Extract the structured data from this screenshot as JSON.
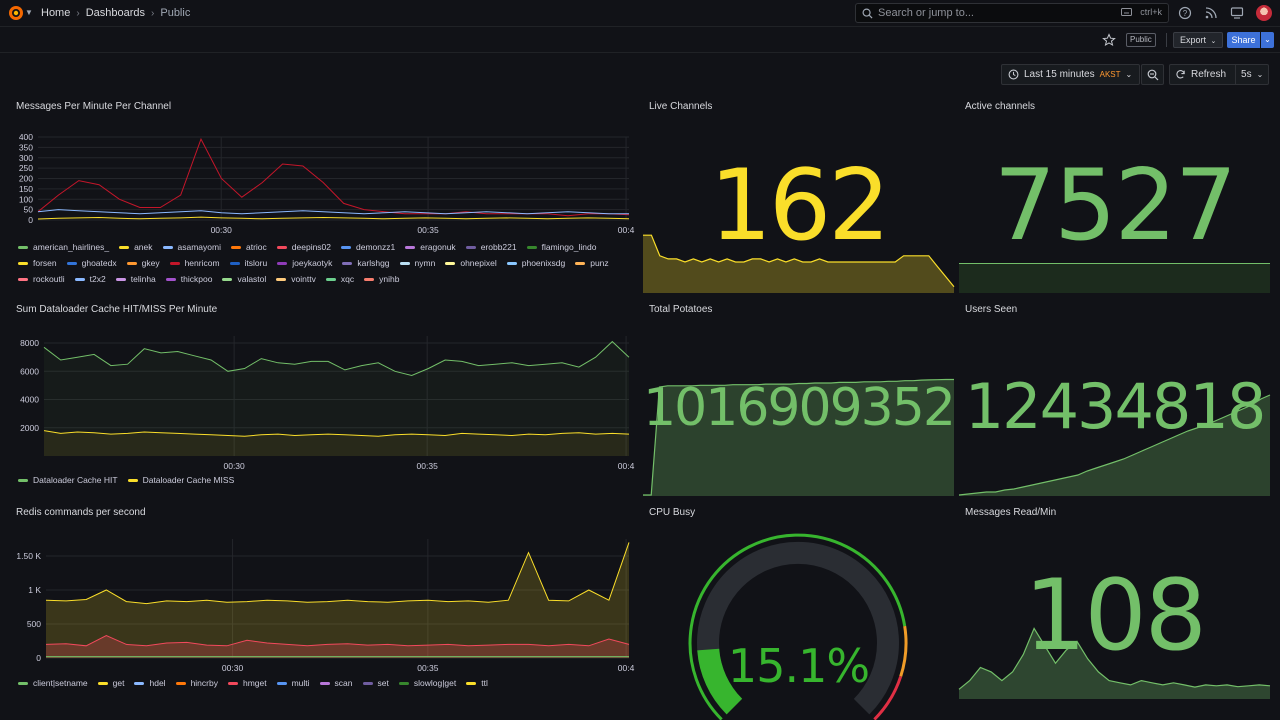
{
  "nav": {
    "breadcrumbs": [
      "Home",
      "Dashboards",
      "Public"
    ],
    "search_placeholder": "Search or jump to...",
    "search_shortcut": "ctrl+k"
  },
  "toolbar": {
    "public_badge": "Public",
    "export_label": "Export",
    "share_label": "Share",
    "time_range": "Last 15 minutes",
    "timezone": "AKST",
    "refresh_label": "Refresh",
    "refresh_interval": "5s"
  },
  "colors": {
    "bg": "#111217",
    "yellow": "#fade2a",
    "green": "#73bf69",
    "gauge_green": "#37b52e",
    "gauge_orange": "#f09c28",
    "gauge_red": "#e02f44"
  },
  "panels": {
    "messages": {
      "title": "Messages Per Minute Per Channel",
      "x_ticks": [
        "00:30",
        "00:35",
        "00:4"
      ],
      "legend": [
        {
          "name": "american_hairlines_",
          "color": "#73bf69"
        },
        {
          "name": "anek",
          "color": "#fade2a"
        },
        {
          "name": "asamayomi",
          "color": "#8ab8ff"
        },
        {
          "name": "atrioc",
          "color": "#ff780a"
        },
        {
          "name": "deepins02",
          "color": "#f2495c"
        },
        {
          "name": "demonzz1",
          "color": "#5794f2"
        },
        {
          "name": "eragonuk",
          "color": "#b877d9"
        },
        {
          "name": "erobb221",
          "color": "#705da0"
        },
        {
          "name": "flamingo_lindo",
          "color": "#37872d"
        },
        {
          "name": "forsen",
          "color": "#fade2a"
        },
        {
          "name": "ghoatedx",
          "color": "#3274d9"
        },
        {
          "name": "gkey",
          "color": "#ff9830"
        },
        {
          "name": "henricom",
          "color": "#c4162a"
        },
        {
          "name": "itsloru",
          "color": "#1f60c4"
        },
        {
          "name": "joeykaotyk",
          "color": "#8f3bb8"
        },
        {
          "name": "karlshgg",
          "color": "#806eb7"
        },
        {
          "name": "nymn",
          "color": "#badff4"
        },
        {
          "name": "ohnepixel",
          "color": "#fff899"
        },
        {
          "name": "phoenixsdg",
          "color": "#8ac7ff"
        },
        {
          "name": "punz",
          "color": "#ffb357"
        },
        {
          "name": "rockoutli",
          "color": "#ff7383"
        },
        {
          "name": "t2x2",
          "color": "#8ab8ff"
        },
        {
          "name": "telinha",
          "color": "#ca95e5"
        },
        {
          "name": "thickpoo",
          "color": "#a352cc"
        },
        {
          "name": "valastol",
          "color": "#96d98d"
        },
        {
          "name": "vointtv",
          "color": "#ffcb7d"
        },
        {
          "name": "xqc",
          "color": "#6ccf8e"
        },
        {
          "name": "ynihb",
          "color": "#f87d6e"
        }
      ]
    },
    "live_channels": {
      "title": "Live Channels",
      "value": "162"
    },
    "active_channels": {
      "title": "Active channels",
      "value": "7527"
    },
    "dataloader": {
      "title": "Sum Dataloader Cache HIT/MISS Per Minute",
      "x_ticks": [
        "00:30",
        "00:35",
        "00:4"
      ],
      "legend": [
        {
          "name": "Dataloader Cache HIT",
          "color": "#73bf69"
        },
        {
          "name": "Dataloader Cache MISS",
          "color": "#fade2a"
        }
      ]
    },
    "total_potatoes": {
      "title": "Total Potatoes",
      "value": "1016909352"
    },
    "users_seen": {
      "title": "Users Seen",
      "value": "12434818"
    },
    "redis": {
      "title": "Redis commands per second",
      "x_ticks": [
        "00:30",
        "00:35",
        "00:4"
      ],
      "legend": [
        {
          "name": "client|setname",
          "color": "#73bf69"
        },
        {
          "name": "get",
          "color": "#fade2a"
        },
        {
          "name": "hdel",
          "color": "#8ab8ff"
        },
        {
          "name": "hincrby",
          "color": "#ff780a"
        },
        {
          "name": "hmget",
          "color": "#f2495c"
        },
        {
          "name": "multi",
          "color": "#5794f2"
        },
        {
          "name": "scan",
          "color": "#b877d9"
        },
        {
          "name": "set",
          "color": "#705da0"
        },
        {
          "name": "slowlog|get",
          "color": "#37872d"
        },
        {
          "name": "ttl",
          "color": "#fade2a"
        }
      ]
    },
    "cpu_busy": {
      "title": "CPU Busy",
      "value": "15.1%",
      "percent": 15.1
    },
    "messages_read": {
      "title": "Messages Read/Min",
      "value": "108"
    }
  },
  "chart_data": [
    {
      "type": "line",
      "title": "Messages Per Minute Per Channel",
      "ylim": [
        0,
        400
      ],
      "y_ticks": [
        "400",
        "350",
        "300",
        "250",
        "200",
        "150",
        "100",
        "50",
        "0"
      ],
      "x_ticks": [
        "00:30",
        "00:35",
        "00:4"
      ],
      "series": [
        {
          "name": "henricom",
          "values": [
            40,
            120,
            190,
            170,
            100,
            60,
            60,
            120,
            390,
            200,
            110,
            180,
            270,
            260,
            180,
            80,
            50,
            40,
            30,
            30,
            30,
            40,
            30,
            30,
            30,
            30,
            20,
            30,
            30,
            25
          ]
        },
        {
          "name": "asamayomi",
          "values": [
            40,
            50,
            45,
            40,
            35,
            30,
            35,
            40,
            45,
            35,
            30,
            35,
            40,
            45,
            40,
            35,
            30,
            35,
            40,
            35,
            30,
            35,
            40,
            35,
            30,
            35,
            40,
            35,
            30,
            30
          ]
        },
        {
          "name": "anek",
          "values": [
            5,
            8,
            10,
            12,
            8,
            6,
            8,
            10,
            14,
            10,
            8,
            6,
            8,
            10,
            12,
            10,
            8,
            6,
            8,
            10,
            8,
            6,
            8,
            10,
            8,
            6,
            8,
            10,
            8,
            6
          ]
        }
      ]
    },
    {
      "type": "line",
      "title": "Sum Dataloader Cache HIT/MISS Per Minute",
      "ylim": [
        0,
        8500
      ],
      "y_ticks": [
        "8000",
        "6000",
        "4000",
        "2000"
      ],
      "x_ticks": [
        "00:30",
        "00:35",
        "00:4"
      ],
      "series": [
        {
          "name": "Dataloader Cache HIT",
          "values": [
            7700,
            6800,
            7000,
            7200,
            6400,
            6500,
            7600,
            7300,
            7400,
            7100,
            6800,
            6000,
            6200,
            6900,
            6600,
            6500,
            6700,
            6700,
            6100,
            6400,
            6600,
            6000,
            5700,
            6200,
            6800,
            6700,
            6400,
            6500,
            6600,
            6400,
            6500,
            6600,
            6300,
            7000,
            8100,
            7000
          ]
        },
        {
          "name": "Dataloader Cache MISS",
          "values": [
            1800,
            1600,
            1700,
            1650,
            1550,
            1600,
            1700,
            1650,
            1600,
            1550,
            1500,
            1450,
            1400,
            1500,
            1550,
            1450,
            1500,
            1550,
            1500,
            1450,
            1400,
            1500,
            1550,
            1500,
            1450,
            1600,
            1550,
            1500,
            1450,
            1550,
            1500,
            1600,
            1650,
            1550,
            1600,
            1550
          ]
        }
      ]
    },
    {
      "type": "area",
      "title": "Redis commands per second",
      "ylim": [
        0,
        1750
      ],
      "y_ticks": [
        "1.50 K",
        "1 K",
        "500",
        "0"
      ],
      "x_ticks": [
        "00:30",
        "00:35",
        "00:4"
      ],
      "series": [
        {
          "name": "get",
          "values": [
            850,
            840,
            860,
            1000,
            830,
            800,
            840,
            830,
            850,
            820,
            830,
            850,
            840,
            820,
            830,
            850,
            830,
            820,
            840,
            850,
            830,
            840,
            820,
            850,
            1550,
            850,
            840,
            1000,
            850,
            1700
          ]
        },
        {
          "name": "hmget",
          "values": [
            200,
            210,
            180,
            330,
            200,
            180,
            220,
            230,
            190,
            180,
            260,
            220,
            200,
            180,
            200,
            210,
            190,
            200,
            180,
            190,
            200,
            180,
            190,
            200,
            200,
            180,
            200,
            180,
            280,
            200
          ]
        },
        {
          "name": "client|setname",
          "values": [
            20,
            20,
            20,
            20,
            20,
            20,
            20,
            20,
            20,
            20,
            20,
            20,
            20,
            20,
            20,
            20,
            20,
            20,
            20,
            20,
            20,
            20,
            20,
            20,
            20,
            20,
            20,
            20,
            20,
            20
          ]
        }
      ]
    },
    {
      "type": "area",
      "title": "Live Channels",
      "values": [
        150,
        150,
        130,
        127,
        127,
        124,
        127,
        124,
        127,
        124,
        127,
        124,
        124,
        127,
        127,
        124,
        127,
        124,
        127,
        124,
        124,
        127,
        124,
        124,
        124,
        124,
        124,
        124,
        124,
        124,
        124,
        130,
        130,
        130,
        130,
        120,
        110,
        100
      ]
    },
    {
      "type": "area",
      "title": "Total Potatoes",
      "values": [
        0,
        0,
        950,
        960,
        960,
        960,
        960,
        965,
        965,
        965,
        965,
        970,
        970,
        970,
        970,
        975,
        975,
        975,
        975,
        980,
        980,
        985,
        985,
        985,
        990,
        990,
        990,
        995,
        995,
        995,
        1000,
        1000,
        1005,
        1005,
        1010,
        1012,
        1014,
        1016,
        1016
      ]
    },
    {
      "type": "area",
      "title": "Users Seen",
      "values": [
        0,
        1,
        2,
        3,
        3,
        5,
        6,
        8,
        10,
        12,
        14,
        16,
        18,
        20,
        24,
        27,
        30,
        33,
        36,
        40,
        44,
        48,
        52,
        56,
        60,
        64,
        67,
        70,
        74,
        78,
        82,
        86,
        90,
        96,
        100
      ]
    },
    {
      "type": "area",
      "title": "Messages Read/Min",
      "values": [
        20,
        40,
        70,
        60,
        40,
        60,
        100,
        160,
        120,
        80,
        110,
        130,
        90,
        60,
        40,
        35,
        30,
        40,
        35,
        30,
        35,
        30,
        25,
        30,
        28,
        30,
        26,
        28,
        30,
        28
      ]
    }
  ]
}
